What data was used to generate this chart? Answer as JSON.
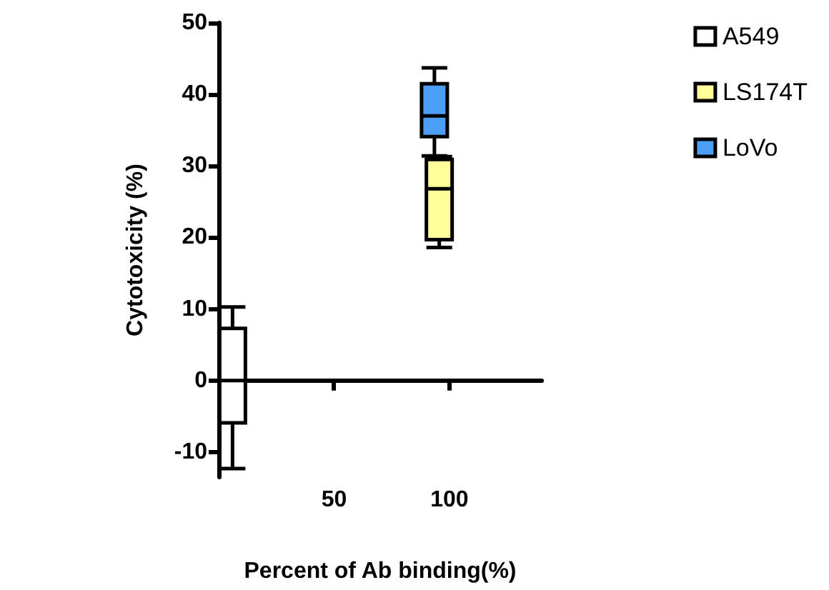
{
  "chart_data": {
    "type": "box",
    "xlabel": "Percent of Ab binding(%)",
    "ylabel": "Cytotoxicity (%)",
    "xlim": [
      0,
      140
    ],
    "xticks": [
      50,
      100
    ],
    "ylim": [
      -13.5,
      50
    ],
    "yticks": [
      -10,
      0,
      10,
      20,
      30,
      40,
      50
    ],
    "legend": "right",
    "series": [
      {
        "name": "A549",
        "color": "#ffffff",
        "x": [
          6
        ],
        "boxes": [
          {
            "low": -12.3,
            "q1": -5.9,
            "median": 0,
            "q3": 7.3,
            "high": 10.3
          }
        ]
      },
      {
        "name": "LS174T",
        "color": "#ffff99",
        "x": [
          95.6
        ],
        "boxes": [
          {
            "low": 18.6,
            "q1": 19.7,
            "median": 26.8,
            "q3": 30.9,
            "high": 31.3
          }
        ]
      },
      {
        "name": "LoVo",
        "color": "#4d9ef7",
        "x": [
          93.5
        ],
        "boxes": [
          {
            "low": 31.4,
            "q1": 34.1,
            "median": 37,
            "q3": 41.5,
            "high": 43.7
          }
        ]
      }
    ]
  }
}
